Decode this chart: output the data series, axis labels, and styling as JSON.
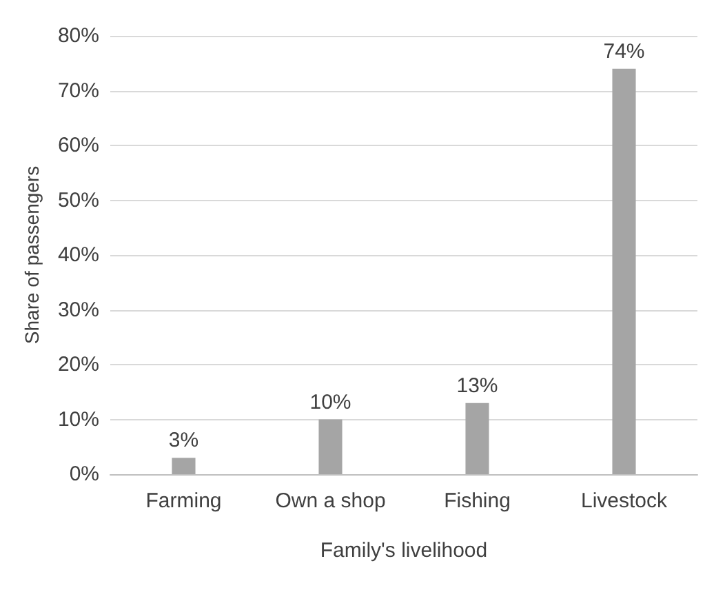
{
  "chart_data": {
    "type": "bar",
    "xlabel": "Family's livelihood",
    "ylabel": "Share of passengers",
    "categories": [
      "Farming",
      "Own a shop",
      "Fishing",
      "Livestock"
    ],
    "values": [
      3,
      10,
      13,
      74
    ],
    "color": "#a5a5a5",
    "value_labels": [
      "3%",
      "10%",
      "13%",
      "74%"
    ],
    "ylim": [
      0,
      80
    ],
    "yticks": [
      {
        "value": 0,
        "label": "0%"
      },
      {
        "value": 10,
        "label": "10%"
      },
      {
        "value": 20,
        "label": "20%"
      },
      {
        "value": 30,
        "label": "30%"
      },
      {
        "value": 40,
        "label": "40%"
      },
      {
        "value": 50,
        "label": "50%"
      },
      {
        "value": 60,
        "label": "60%"
      },
      {
        "value": 70,
        "label": "70%"
      },
      {
        "value": 80,
        "label": "80%"
      }
    ],
    "grid": "y"
  }
}
